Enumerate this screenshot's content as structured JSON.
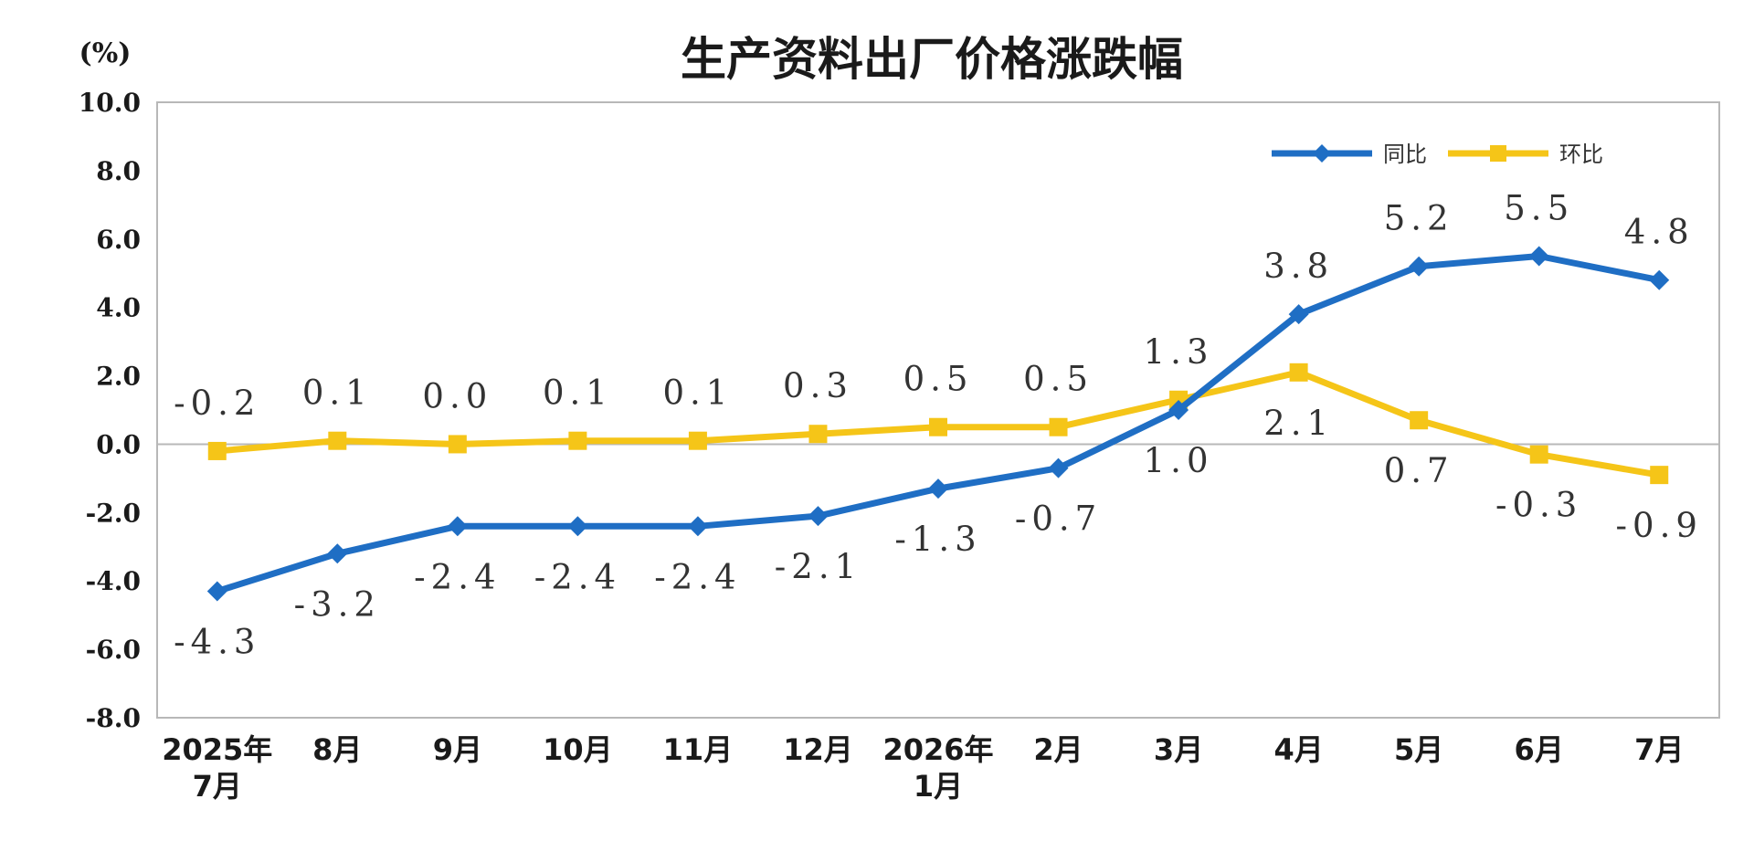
{
  "chart_data": {
    "type": "line",
    "title": "生产资料出厂价格涨跌幅",
    "unit_label": "(%)",
    "categories": [
      [
        "2025年",
        "7月"
      ],
      [
        "8月"
      ],
      [
        "9月"
      ],
      [
        "10月"
      ],
      [
        "11月"
      ],
      [
        "12月"
      ],
      [
        "2026年",
        "1月"
      ],
      [
        "2月"
      ],
      [
        "3月"
      ],
      [
        "4月"
      ],
      [
        "5月"
      ],
      [
        "6月"
      ],
      [
        "7月"
      ]
    ],
    "ylim": [
      -8.0,
      10.0
    ],
    "yticks": [
      "10.0",
      "8.0",
      "6.0",
      "4.0",
      "2.0",
      "0.0",
      "-2.0",
      "-4.0",
      "-6.0",
      "-8.0"
    ],
    "grid": false,
    "legend_position": "top-right",
    "series": [
      {
        "name": "同比",
        "color": "#1f6ec4",
        "marker": "diamond",
        "values": [
          -4.3,
          -3.2,
          -2.4,
          -2.4,
          -2.4,
          -2.1,
          -1.3,
          -0.7,
          1.0,
          3.8,
          5.2,
          5.5,
          4.8
        ],
        "labels": [
          "-4.3",
          "-3.2",
          "-2.4",
          "-2.4",
          "-2.4",
          "-2.1",
          "-1.3",
          "-0.7",
          "1.0",
          "3.8",
          "5.2",
          "5.5",
          "4.8"
        ]
      },
      {
        "name": "环比",
        "color": "#f5c518",
        "marker": "square",
        "values": [
          -0.2,
          0.1,
          0.0,
          0.1,
          0.1,
          0.3,
          0.5,
          0.5,
          1.3,
          2.1,
          0.7,
          -0.3,
          -0.9
        ],
        "labels": [
          "-0.2",
          "0.1",
          "0.0",
          "0.1",
          "0.1",
          "0.3",
          "0.5",
          "0.5",
          "1.3",
          "2.1",
          "0.7",
          "-0.3",
          "-0.9"
        ]
      }
    ]
  }
}
